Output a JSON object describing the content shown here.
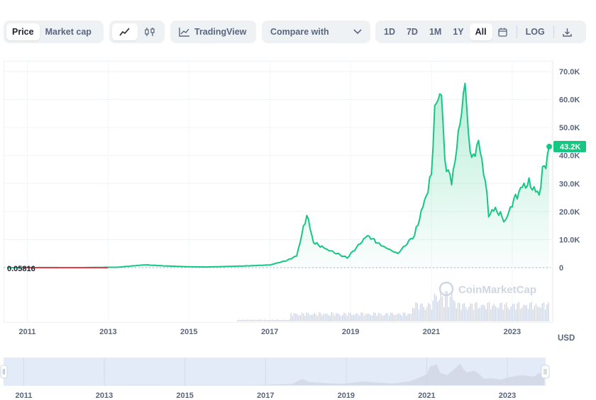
{
  "toolbar": {
    "view_tabs": [
      {
        "label": "Price",
        "active": true
      },
      {
        "label": "Market cap",
        "active": false
      }
    ],
    "chart_type_icons": [
      "line-chart-icon",
      "candlestick-icon"
    ],
    "tradingview_label": "TradingView",
    "compare_label": "Compare with",
    "ranges": [
      {
        "label": "1D",
        "active": false
      },
      {
        "label": "7D",
        "active": false
      },
      {
        "label": "1M",
        "active": false
      },
      {
        "label": "1Y",
        "active": false
      },
      {
        "label": "All",
        "active": true
      }
    ],
    "log_label": "LOG",
    "calendar_icon": "calendar-icon",
    "download_icon": "download-icon"
  },
  "watermark": "CoinMarketCap",
  "currency_label": "USD",
  "colors": {
    "up": "#16c784",
    "down": "#ea3943",
    "area_top": "#16c784",
    "volume": "#cfd6e4",
    "navigator_fill": "#e3eaf8",
    "accent_text": "#222531",
    "muted_text": "#58667e"
  },
  "chart_data": {
    "type": "area",
    "title": "",
    "xlabel": "",
    "ylabel": "",
    "ylim": [
      0,
      70000
    ],
    "y_ticks": [
      "70.0K",
      "60.0K",
      "50.0K",
      "40.0K",
      "30.0K",
      "20.0K",
      "10.0K",
      "0"
    ],
    "x_ticks": [
      "2011",
      "2013",
      "2015",
      "2017",
      "2019",
      "2021",
      "2023"
    ],
    "start_label": "0.05816",
    "current_label": "43.2K",
    "series": [
      {
        "x": [
          "2010-07",
          "2011-06",
          "2012-06",
          "2013-04",
          "2013-12",
          "2014-06",
          "2015-01",
          "2015-06",
          "2016-01",
          "2016-07",
          "2017-01",
          "2017-06",
          "2017-09",
          "2017-12",
          "2018-02",
          "2018-06",
          "2018-12",
          "2019-06",
          "2019-10",
          "2020-03",
          "2020-08",
          "2020-12",
          "2021-01",
          "2021-02",
          "2021-04",
          "2021-05",
          "2021-06",
          "2021-07",
          "2021-09",
          "2021-11",
          "2021-12",
          "2022-01",
          "2022-03",
          "2022-05",
          "2022-06",
          "2022-08",
          "2022-11",
          "2023-01",
          "2023-04",
          "2023-06",
          "2023-09",
          "2023-10",
          "2023-11",
          "2023-12"
        ],
        "values": [
          0.06,
          15,
          7,
          150,
          1000,
          600,
          300,
          230,
          430,
          650,
          950,
          2500,
          4200,
          19000,
          9000,
          6500,
          3500,
          11500,
          8000,
          5000,
          11600,
          28000,
          33000,
          57000,
          63000,
          37000,
          35000,
          30000,
          47000,
          66000,
          48000,
          38000,
          45000,
          31000,
          19000,
          21000,
          16500,
          23000,
          29000,
          30000,
          26000,
          34500,
          37000,
          43200
        ]
      }
    ]
  }
}
